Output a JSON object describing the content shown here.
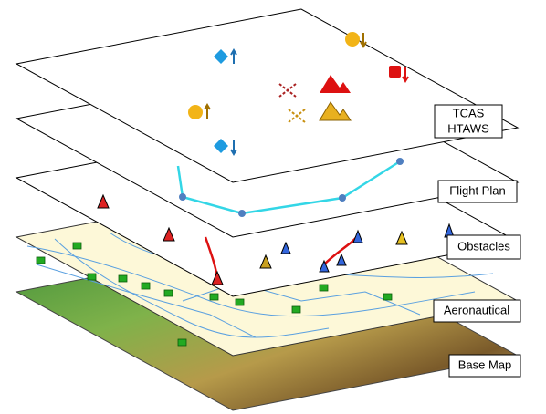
{
  "layers": [
    {
      "label_lines": [
        "TCAS",
        "HTAWS"
      ]
    },
    {
      "label_lines": [
        "Flight Plan"
      ]
    },
    {
      "label_lines": [
        "Obstacles"
      ]
    },
    {
      "label_lines": [
        "Aeronautical"
      ]
    },
    {
      "label_lines": [
        "Base Map"
      ]
    }
  ]
}
